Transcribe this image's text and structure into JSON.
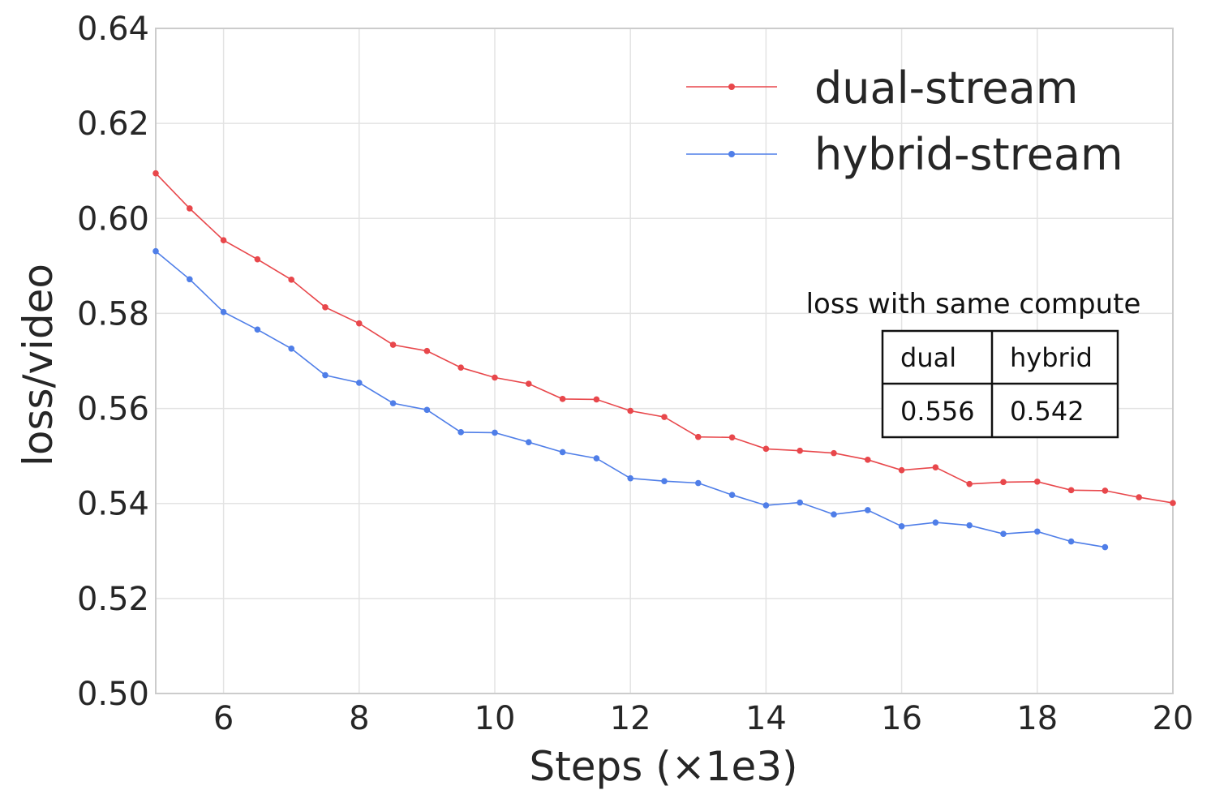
{
  "chart_data": {
    "type": "line",
    "title": "",
    "xlabel": "Steps (×1e3)",
    "ylabel": "loss/video",
    "xlim": [
      5,
      20
    ],
    "ylim": [
      0.5,
      0.64
    ],
    "xticks": [
      6,
      8,
      10,
      12,
      14,
      16,
      18,
      20
    ],
    "xtick_labels": [
      "6",
      "8",
      "10",
      "12",
      "14",
      "16",
      "18",
      "20"
    ],
    "yticks": [
      0.5,
      0.52,
      0.54,
      0.56,
      0.58,
      0.6,
      0.62,
      0.64
    ],
    "ytick_labels": [
      "0.50",
      "0.52",
      "0.54",
      "0.56",
      "0.58",
      "0.60",
      "0.62",
      "0.64"
    ],
    "grid": true,
    "legend_position": "top-right",
    "series": [
      {
        "name": "dual-stream",
        "color": "#e8474b",
        "x": [
          5,
          5.5,
          6,
          6.5,
          7,
          7.5,
          8,
          8.5,
          9,
          9.5,
          10,
          10.5,
          11,
          11.5,
          12,
          12.5,
          13,
          13.5,
          14,
          14.5,
          15,
          15.5,
          16,
          16.5,
          17,
          17.5,
          18,
          18.5,
          19,
          19.5,
          20
        ],
        "values": [
          0.6095,
          0.6021,
          0.5954,
          0.5914,
          0.5871,
          0.5813,
          0.5779,
          0.5734,
          0.5721,
          0.5686,
          0.5665,
          0.5652,
          0.562,
          0.5619,
          0.5595,
          0.5582,
          0.554,
          0.5539,
          0.5515,
          0.5511,
          0.5506,
          0.5492,
          0.547,
          0.5476,
          0.5441,
          0.5445,
          0.5446,
          0.5428,
          0.5427,
          0.5413,
          0.5401
        ]
      },
      {
        "name": "hybrid-stream",
        "color": "#4f7ee8",
        "x": [
          5,
          5.5,
          6,
          6.5,
          7,
          7.5,
          8,
          8.5,
          9,
          9.5,
          10,
          10.5,
          11,
          11.5,
          12,
          12.5,
          13,
          13.5,
          14,
          14.5,
          15,
          15.5,
          16,
          16.5,
          17,
          17.5,
          18,
          18.5,
          19
        ],
        "values": [
          0.5931,
          0.5872,
          0.5803,
          0.5766,
          0.5726,
          0.567,
          0.5654,
          0.5611,
          0.5597,
          0.555,
          0.5549,
          0.5529,
          0.5508,
          0.5495,
          0.5453,
          0.5447,
          0.5443,
          0.5418,
          0.5396,
          0.5402,
          0.5377,
          0.5386,
          0.5352,
          0.536,
          0.5354,
          0.5336,
          0.5341,
          0.532,
          0.5308
        ]
      }
    ],
    "inset_table": {
      "title": "loss with same compute",
      "headers": [
        "dual",
        "hybrid"
      ],
      "values": [
        "0.556",
        "0.542"
      ]
    }
  }
}
